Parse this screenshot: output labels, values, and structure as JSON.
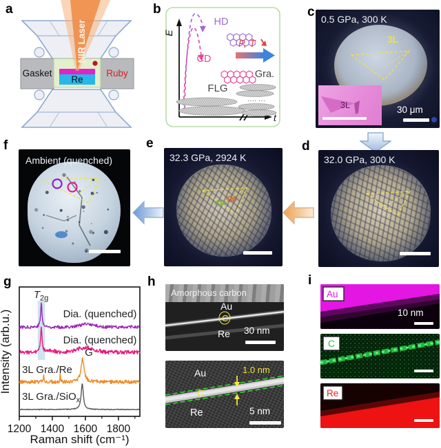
{
  "panel_a": {
    "letter": "a",
    "laser_label": "NIR Laser",
    "gasket_label": "Gasket",
    "ruby_label": "Ruby",
    "re_label": "Re",
    "colors": {
      "laser": "#ee8a43",
      "ruby_dot": "#c01414",
      "ruby_text": "#d42222",
      "re_box": "#29b6ea",
      "sample_strip": "#e421c6",
      "chamber": "#e3efcd",
      "gasket": "#b8babd",
      "anvil": "#edeff5",
      "anvil_stroke": "#8ea8cc"
    }
  },
  "panel_b": {
    "letter": "b",
    "e_axis_label": "E",
    "t_axis_label": "t",
    "hd_label": "HD",
    "cd_label": "CD",
    "pt_label": "P, T",
    "flg_label": "FLG",
    "gra_label": "Gra.",
    "colors": {
      "hd": "#a06ad8",
      "cd": "#e8479c",
      "pt_text": "#e8433c",
      "box_border": "#b9dca4"
    }
  },
  "panel_c": {
    "letter": "c",
    "condition": "0.5 GPa, 300 K",
    "region_label": "3L",
    "inset_label": "3L",
    "scale_bar_label": "30 μm"
  },
  "panel_d": {
    "letter": "d",
    "condition": "32.0 GPa, 300 K"
  },
  "panel_e": {
    "letter": "e",
    "condition": "32.3 GPa, 2924 K"
  },
  "panel_f": {
    "letter": "f",
    "condition": "Ambient (quenched)"
  },
  "panel_g": {
    "letter": "g"
  },
  "chart_data": {
    "type": "line",
    "xlabel": "Raman shift (cm⁻¹)",
    "ylabel": "Intensity (arb.u.)",
    "xlim": [
      1200,
      1930
    ],
    "xticks": [
      1200,
      1400,
      1600,
      1800
    ],
    "minor_ticks": [
      1300,
      1500,
      1700,
      1900
    ],
    "grid": false,
    "highlight_band": {
      "x0": 1312,
      "x1": 1356,
      "color": "#cfe3f0"
    },
    "peak_labels": [
      {
        "text": "T_2g",
        "x": 1332,
        "italic": true
      },
      {
        "text": "G",
        "x": 1592,
        "italic": false
      }
    ],
    "series": [
      {
        "name": "Dia. (quenched)",
        "color": "#9b27b5",
        "offset": 0.69,
        "noise": 0.012,
        "peaks": [
          {
            "center": 1333,
            "height": 0.185,
            "width": 5
          }
        ],
        "bumps": [
          {
            "center": 1610,
            "height": 0.022,
            "sigma": 45
          }
        ]
      },
      {
        "name": "Dia. (quenched)",
        "color": "#e8197d",
        "offset": 0.495,
        "noise": 0.015,
        "peaks": [
          {
            "center": 1333,
            "height": 0.18,
            "width": 5
          }
        ],
        "bumps": [
          {
            "center": 1600,
            "height": 0.035,
            "sigma": 55
          },
          {
            "center": 1380,
            "height": 0.015,
            "sigma": 30
          }
        ]
      },
      {
        "name": "3L Gra./Re",
        "color": "#f08a24",
        "offset": 0.266,
        "noise": 0.014,
        "peaks": [
          {
            "center": 1583,
            "height": 0.175,
            "width": 11
          },
          {
            "center": 1348,
            "height": 0.045,
            "width": 3
          },
          {
            "center": 1448,
            "height": 0.075,
            "width": 2
          }
        ],
        "bumps": []
      },
      {
        "name": "3L Gra./SiO_x",
        "color": "#55585c",
        "offset": 0.053,
        "noise": 0.003,
        "peaks": [
          {
            "center": 1581,
            "height": 0.2,
            "width": 8
          }
        ],
        "bumps": []
      }
    ]
  },
  "panel_h": {
    "letter": "h",
    "top": {
      "annotation": "Amorphous carbon",
      "au": "Au",
      "c": "C",
      "re": "Re",
      "scale_bar_label": "30 nm"
    },
    "bottom": {
      "au": "Au",
      "thickness": "1.0 nm",
      "c": "C",
      "re": "Re",
      "scale_bar_label": "5 nm"
    }
  },
  "panel_i": {
    "letter": "i",
    "maps": [
      {
        "element": "Au",
        "color": "#e316e3",
        "scale_bar_label": "10 nm"
      },
      {
        "element": "C",
        "color": "#2bbb55",
        "scale_bar_label": ""
      },
      {
        "element": "Re",
        "color": "#ee2222",
        "scale_bar_label": ""
      }
    ]
  }
}
